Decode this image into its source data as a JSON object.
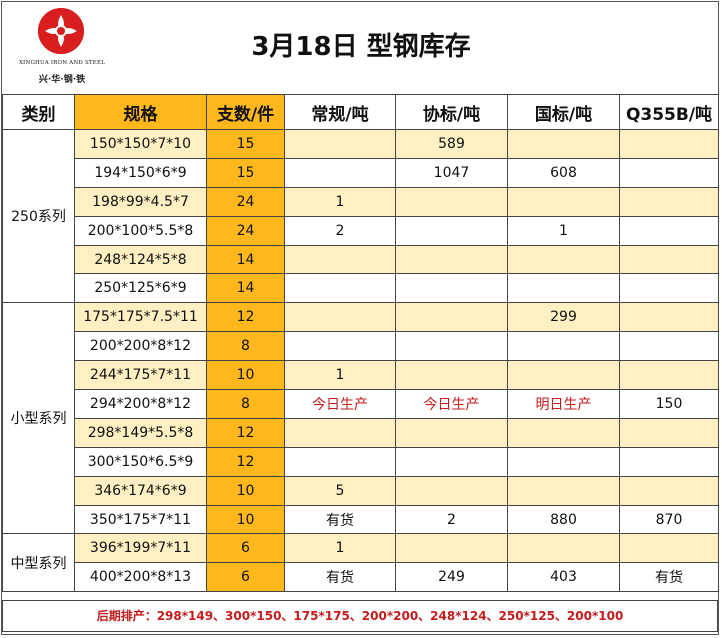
{
  "header": {
    "logo": {
      "en": "XINGHUA IRON AND STEEL",
      "cn": "兴·华·钢·铁",
      "brand_color": "#d81e1e"
    },
    "title": "3月18日  型钢库存"
  },
  "table": {
    "columns": [
      "类别",
      "规格",
      "支数/件",
      "常规/吨",
      "协标/吨",
      "国标/吨",
      "Q355B/吨"
    ],
    "groups": [
      {
        "category": "250系列",
        "rows": [
          {
            "spec": "150*150*7*10",
            "qty": "15",
            "regular": "",
            "assoc": "589",
            "national": "",
            "q355b": ""
          },
          {
            "spec": "194*150*6*9",
            "qty": "15",
            "regular": "",
            "assoc": "1047",
            "national": "608",
            "q355b": ""
          },
          {
            "spec": "198*99*4.5*7",
            "qty": "24",
            "regular": "1",
            "assoc": "",
            "national": "",
            "q355b": ""
          },
          {
            "spec": "200*100*5.5*8",
            "qty": "24",
            "regular": "2",
            "assoc": "",
            "national": "1",
            "q355b": ""
          },
          {
            "spec": "248*124*5*8",
            "qty": "14",
            "regular": "",
            "assoc": "",
            "national": "",
            "q355b": ""
          },
          {
            "spec": "250*125*6*9",
            "qty": "14",
            "regular": "",
            "assoc": "",
            "national": "",
            "q355b": ""
          }
        ]
      },
      {
        "category": "小型系列",
        "rows": [
          {
            "spec": "175*175*7.5*11",
            "qty": "12",
            "regular": "",
            "assoc": "",
            "national": "299",
            "q355b": ""
          },
          {
            "spec": "200*200*8*12",
            "qty": "8",
            "regular": "",
            "assoc": "",
            "national": "",
            "q355b": ""
          },
          {
            "spec": "244*175*7*11",
            "qty": "10",
            "regular": "1",
            "assoc": "",
            "national": "",
            "q355b": ""
          },
          {
            "spec": "294*200*8*12",
            "qty": "8",
            "regular": "今日生产",
            "assoc": "今日生产",
            "national": "明日生产",
            "q355b": "150"
          },
          {
            "spec": "298*149*5.5*8",
            "qty": "12",
            "regular": "",
            "assoc": "",
            "national": "",
            "q355b": ""
          },
          {
            "spec": "300*150*6.5*9",
            "qty": "12",
            "regular": "",
            "assoc": "",
            "national": "",
            "q355b": ""
          },
          {
            "spec": "346*174*6*9",
            "qty": "10",
            "regular": "5",
            "assoc": "",
            "national": "",
            "q355b": ""
          },
          {
            "spec": "350*175*7*11",
            "qty": "10",
            "regular": "有货",
            "assoc": "2",
            "national": "880",
            "q355b": "870"
          }
        ]
      },
      {
        "category": "中型系列",
        "rows": [
          {
            "spec": "396*199*7*11",
            "qty": "6",
            "regular": "1",
            "assoc": "",
            "national": "",
            "q355b": ""
          },
          {
            "spec": "400*200*8*13",
            "qty": "6",
            "regular": "有货",
            "assoc": "249",
            "national": "403",
            "q355b": "有货"
          }
        ]
      }
    ]
  },
  "footer": {
    "note": "后期排产：298*149、300*150、175*175、200*200、248*124、250*125、200*100"
  },
  "colors": {
    "gold": "#ffb81c",
    "pale_yellow": "#fef0c2",
    "red_text": "#c41b1b"
  }
}
